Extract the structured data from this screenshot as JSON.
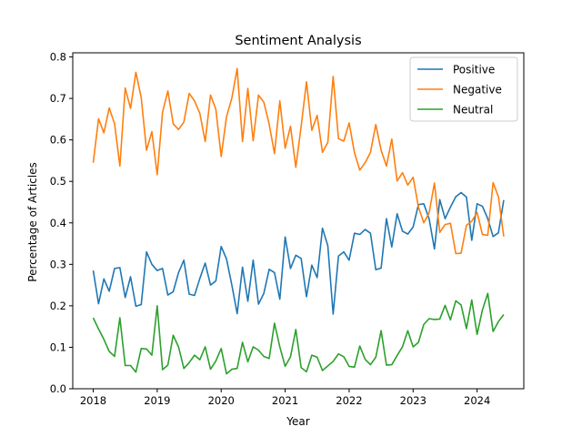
{
  "chart_data": {
    "type": "line",
    "title": "Sentiment Analysis",
    "xlabel": "Year",
    "ylabel": "Percentage of Articles",
    "xlim": [
      2017.68,
      2024.73
    ],
    "ylim": [
      0.0,
      0.81
    ],
    "x_ticks": [
      2018,
      2019,
      2020,
      2021,
      2022,
      2023,
      2024
    ],
    "x_tick_labels": [
      "2018",
      "2019",
      "2020",
      "2021",
      "2022",
      "2023",
      "2024"
    ],
    "y_ticks": [
      0.0,
      0.1,
      0.2,
      0.3,
      0.4,
      0.5,
      0.6,
      0.7,
      0.8
    ],
    "y_tick_labels": [
      "0.0",
      "0.1",
      "0.2",
      "0.3",
      "0.4",
      "0.5",
      "0.6",
      "0.7",
      "0.8"
    ],
    "legend_position": "top-right",
    "x_start": "2018-01",
    "x_step": "1 month",
    "series": [
      {
        "name": "Positive",
        "color": "#1f77b4",
        "values": [
          0.285,
          0.205,
          0.265,
          0.235,
          0.29,
          0.292,
          0.22,
          0.27,
          0.199,
          0.203,
          0.33,
          0.3,
          0.285,
          0.29,
          0.226,
          0.234,
          0.28,
          0.31,
          0.228,
          0.225,
          0.266,
          0.303,
          0.25,
          0.26,
          0.343,
          0.313,
          0.25,
          0.181,
          0.293,
          0.211,
          0.31,
          0.204,
          0.23,
          0.288,
          0.28,
          0.216,
          0.366,
          0.29,
          0.322,
          0.314,
          0.222,
          0.298,
          0.268,
          0.387,
          0.345,
          0.18,
          0.32,
          0.33,
          0.31,
          0.375,
          0.372,
          0.384,
          0.375,
          0.287,
          0.291,
          0.41,
          0.342,
          0.422,
          0.38,
          0.373,
          0.39,
          0.444,
          0.446,
          0.41,
          0.337,
          0.456,
          0.41,
          0.438,
          0.463,
          0.473,
          0.462,
          0.358,
          0.446,
          0.44,
          0.41,
          0.367,
          0.376,
          0.455
        ]
      },
      {
        "name": "Negative",
        "color": "#ff7f0e",
        "values": [
          0.545,
          0.651,
          0.617,
          0.677,
          0.639,
          0.537,
          0.725,
          0.676,
          0.763,
          0.702,
          0.575,
          0.62,
          0.516,
          0.667,
          0.718,
          0.639,
          0.625,
          0.643,
          0.712,
          0.694,
          0.664,
          0.596,
          0.708,
          0.674,
          0.56,
          0.656,
          0.701,
          0.772,
          0.596,
          0.724,
          0.598,
          0.708,
          0.691,
          0.638,
          0.567,
          0.694,
          0.58,
          0.633,
          0.534,
          0.633,
          0.74,
          0.623,
          0.659,
          0.57,
          0.594,
          0.753,
          0.603,
          0.597,
          0.641,
          0.569,
          0.527,
          0.545,
          0.57,
          0.637,
          0.575,
          0.537,
          0.602,
          0.501,
          0.521,
          0.491,
          0.51,
          0.438,
          0.4,
          0.424,
          0.496,
          0.377,
          0.396,
          0.399,
          0.326,
          0.327,
          0.394,
          0.404,
          0.425,
          0.372,
          0.37,
          0.497,
          0.463,
          0.367
        ]
      },
      {
        "name": "Neutral",
        "color": "#2ca02c",
        "values": [
          0.171,
          0.144,
          0.119,
          0.09,
          0.078,
          0.171,
          0.056,
          0.056,
          0.04,
          0.097,
          0.096,
          0.081,
          0.2,
          0.046,
          0.057,
          0.129,
          0.101,
          0.049,
          0.063,
          0.081,
          0.07,
          0.101,
          0.047,
          0.067,
          0.097,
          0.036,
          0.047,
          0.049,
          0.112,
          0.065,
          0.101,
          0.093,
          0.078,
          0.073,
          0.158,
          0.101,
          0.054,
          0.077,
          0.143,
          0.051,
          0.041,
          0.081,
          0.076,
          0.044,
          0.055,
          0.066,
          0.084,
          0.077,
          0.054,
          0.052,
          0.103,
          0.071,
          0.058,
          0.076,
          0.14,
          0.057,
          0.058,
          0.08,
          0.101,
          0.14,
          0.101,
          0.112,
          0.155,
          0.169,
          0.167,
          0.168,
          0.201,
          0.166,
          0.212,
          0.202,
          0.145,
          0.214,
          0.131,
          0.19,
          0.23,
          0.138,
          0.162,
          0.179
        ]
      }
    ]
  }
}
